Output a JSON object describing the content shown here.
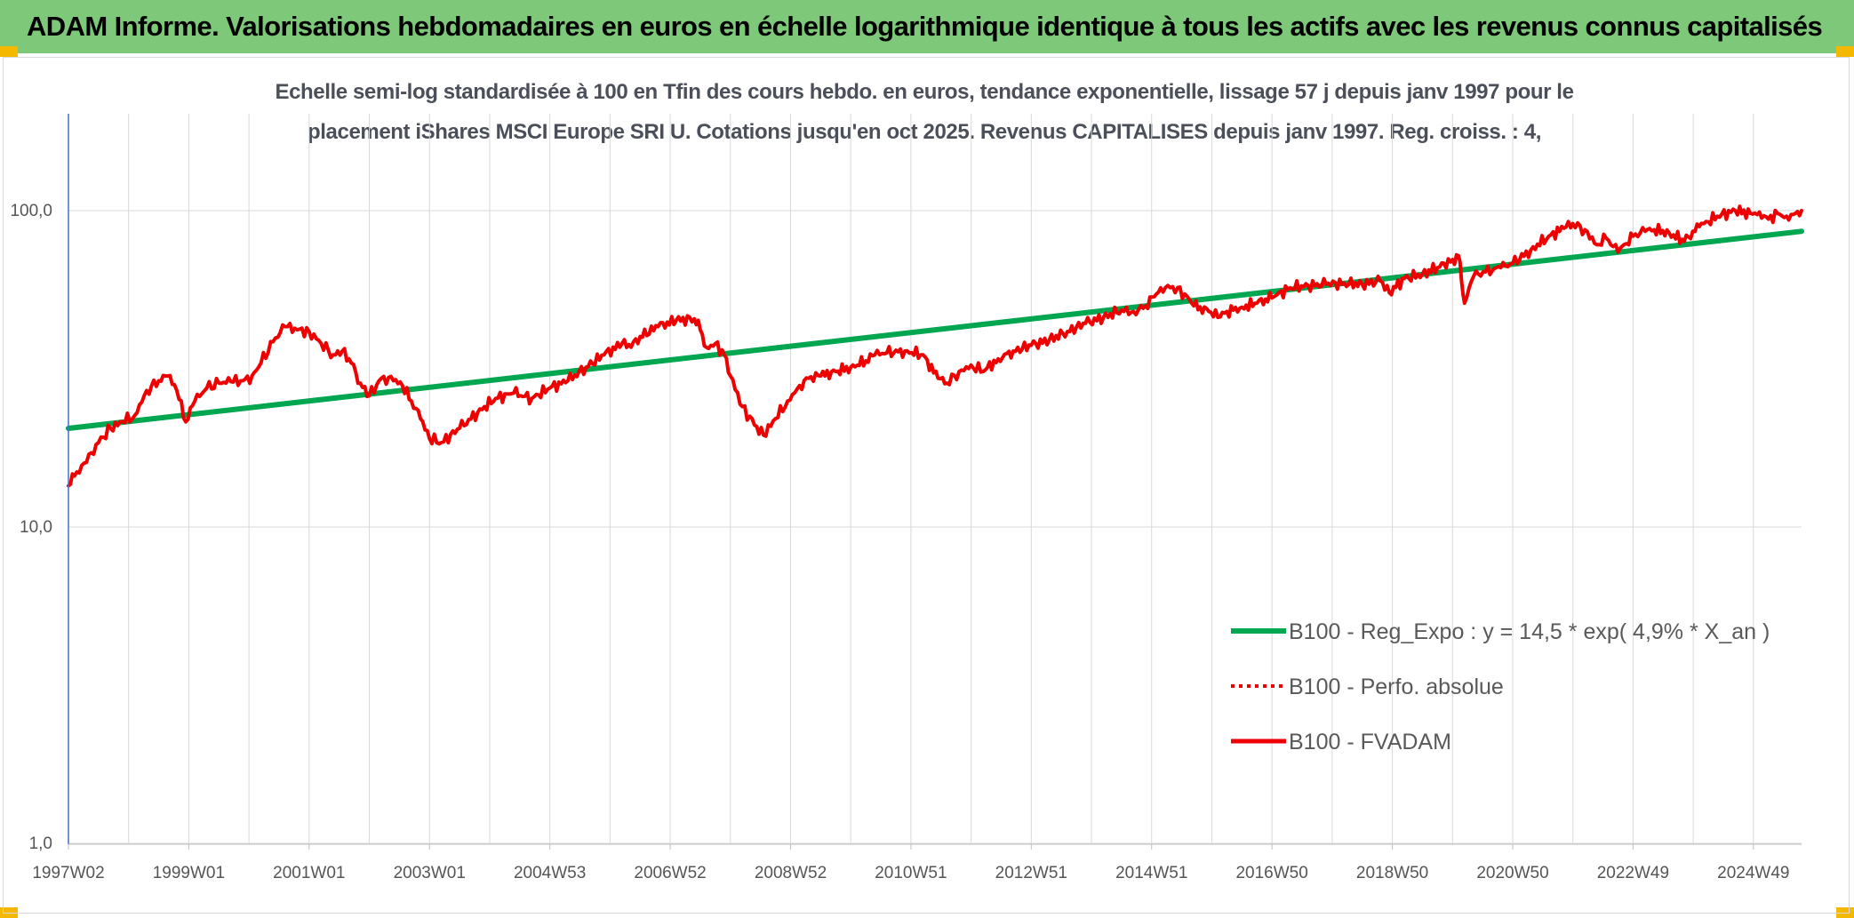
{
  "header": {
    "title": "ADAM Informe. Valorisations hebdomadaires en euros en échelle logarithmique identique à tous les actifs avec les revenus connus capitalisés"
  },
  "colors": {
    "banner": "#7ec87a",
    "corner": "#f5b800",
    "trend": "#00a650",
    "price": "#ee0000",
    "grid": "#d9d9d9",
    "axis": "#4472c4"
  },
  "chart_data": {
    "type": "line",
    "title_line1": "Echelle semi-log standardisée à 100 en Tfin des cours hebdo. en euros, tendance exponentielle, lissage 57 j depuis janv 1997 pour le",
    "title_line2": "placement iShares MSCI Europe SRI U. Cotations jusqu'en oct 2025. Revenus CAPITALISES depuis janv 1997. Reg. croiss. : 4,",
    "y_scale": "log",
    "ylim": [
      1,
      200
    ],
    "y_ticks": [
      {
        "value": 100,
        "label": "100,0"
      },
      {
        "value": 10,
        "label": "10,0"
      },
      {
        "value": 1,
        "label": "1,0"
      }
    ],
    "xlim": [
      1997.0,
      2025.8
    ],
    "x_ticks": [
      {
        "value": 1997.0,
        "label": "1997W02"
      },
      {
        "value": 1999.0,
        "label": "1999W01"
      },
      {
        "value": 2001.0,
        "label": "2001W01"
      },
      {
        "value": 2003.0,
        "label": "2003W01"
      },
      {
        "value": 2005.0,
        "label": "2004W53"
      },
      {
        "value": 2007.0,
        "label": "2006W52"
      },
      {
        "value": 2009.0,
        "label": "2008W52"
      },
      {
        "value": 2011.0,
        "label": "2010W51"
      },
      {
        "value": 2013.0,
        "label": "2012W51"
      },
      {
        "value": 2015.0,
        "label": "2014W51"
      },
      {
        "value": 2017.0,
        "label": "2016W50"
      },
      {
        "value": 2019.0,
        "label": "2018W50"
      },
      {
        "value": 2021.0,
        "label": "2020W50"
      },
      {
        "value": 2023.0,
        "label": "2022W49"
      },
      {
        "value": 2025.0,
        "label": "2024W49"
      }
    ],
    "grid": true,
    "legend_position": "bottom-right",
    "series": [
      {
        "name": "B100 - Reg_Expo : y = 14,5 * exp( 4,9% * X_an )",
        "style": "solid-thick",
        "color": "#00a650",
        "x": [
          1997.0,
          2025.8
        ],
        "y": [
          20.5,
          86.0
        ]
      },
      {
        "name": "B100 - Perfo. absolue",
        "style": "dotted",
        "color": "#ee0000",
        "x": [],
        "y": []
      },
      {
        "name": "B100 - FVADAM",
        "style": "solid",
        "color": "#ee0000",
        "x": [
          1997.0,
          1997.1,
          1997.3,
          1997.5,
          1997.7,
          1997.9,
          1998.1,
          1998.3,
          1998.5,
          1998.65,
          1998.8,
          1998.95,
          1999.1,
          1999.3,
          1999.5,
          1999.7,
          1999.9,
          2000.05,
          2000.2,
          2000.4,
          2000.6,
          2000.8,
          2001.0,
          2001.2,
          2001.4,
          2001.55,
          2001.7,
          2001.85,
          2002.0,
          2002.2,
          2002.4,
          2002.55,
          2002.7,
          2002.85,
          2003.0,
          2003.2,
          2003.5,
          2003.8,
          2004.1,
          2004.4,
          2004.7,
          2005.0,
          2005.3,
          2005.6,
          2005.9,
          2006.2,
          2006.35,
          2006.5,
          2006.8,
          2007.1,
          2007.4,
          2007.5,
          2007.6,
          2007.75,
          2007.9,
          2008.0,
          2008.2,
          2008.4,
          2008.55,
          2008.75,
          2008.95,
          2009.15,
          2009.3,
          2009.5,
          2009.75,
          2010.0,
          2010.25,
          2010.4,
          2010.6,
          2010.9,
          2011.2,
          2011.45,
          2011.6,
          2011.8,
          2012.0,
          2012.2,
          2012.45,
          2012.7,
          2013.0,
          2013.3,
          2013.6,
          2013.9,
          2014.2,
          2014.5,
          2014.7,
          2014.9,
          2015.15,
          2015.35,
          2015.55,
          2015.7,
          2015.95,
          2016.1,
          2016.25,
          2016.5,
          2016.75,
          2017.0,
          2017.3,
          2017.6,
          2017.9,
          2018.2,
          2018.5,
          2018.8,
          2018.95,
          2019.2,
          2019.5,
          2019.75,
          2020.0,
          2020.1,
          2020.15,
          2020.2,
          2020.35,
          2020.55,
          2020.8,
          2021.0,
          2021.3,
          2021.6,
          2021.85,
          2022.0,
          2022.2,
          2022.4,
          2022.55,
          2022.75,
          2023.0,
          2023.2,
          2023.35,
          2023.6,
          2023.85,
          2024.1,
          2024.4,
          2024.7,
          2024.95,
          2025.1,
          2025.25,
          2025.4,
          2025.55,
          2025.7,
          2025.8
        ],
        "y": [
          13.5,
          14.5,
          16.0,
          18.5,
          20.5,
          21.5,
          22.5,
          27.0,
          29.0,
          30.0,
          27.0,
          21.5,
          25.0,
          27.5,
          28.5,
          28.8,
          29.0,
          30.0,
          33.0,
          38.5,
          43.0,
          42.0,
          41.5,
          38.0,
          35.0,
          36.0,
          33.0,
          28.5,
          26.0,
          29.5,
          29.0,
          28.0,
          25.0,
          22.0,
          19.0,
          18.5,
          20.5,
          23.0,
          25.5,
          26.5,
          25.5,
          27.5,
          29.0,
          32.0,
          35.0,
          38.0,
          37.0,
          40.0,
          43.0,
          45.0,
          45.5,
          42.0,
          37.0,
          38.0,
          35.0,
          30.0,
          24.0,
          21.0,
          19.5,
          22.0,
          25.0,
          28.0,
          29.5,
          30.0,
          31.0,
          32.0,
          33.5,
          35.0,
          35.5,
          36.0,
          35.0,
          29.5,
          28.5,
          31.0,
          32.5,
          31.0,
          34.0,
          36.0,
          37.5,
          39.0,
          41.5,
          44.0,
          46.0,
          48.5,
          48.0,
          50.0,
          57.0,
          57.5,
          54.5,
          50.0,
          48.0,
          46.0,
          48.0,
          49.5,
          51.0,
          53.0,
          57.0,
          58.0,
          58.5,
          59.0,
          58.5,
          60.0,
          55.0,
          61.0,
          63.0,
          66.0,
          70.0,
          72.0,
          60.0,
          51.0,
          62.0,
          64.0,
          66.0,
          68.0,
          75.0,
          83.0,
          88.0,
          91.0,
          87.0,
          78.0,
          82.0,
          74.0,
          83.0,
          86.0,
          87.0,
          85.0,
          80.0,
          89.0,
          96.0,
          100.0,
          98.0,
          99.0,
          94.0,
          98.0,
          96.0,
          98.0,
          100.0
        ]
      }
    ]
  }
}
